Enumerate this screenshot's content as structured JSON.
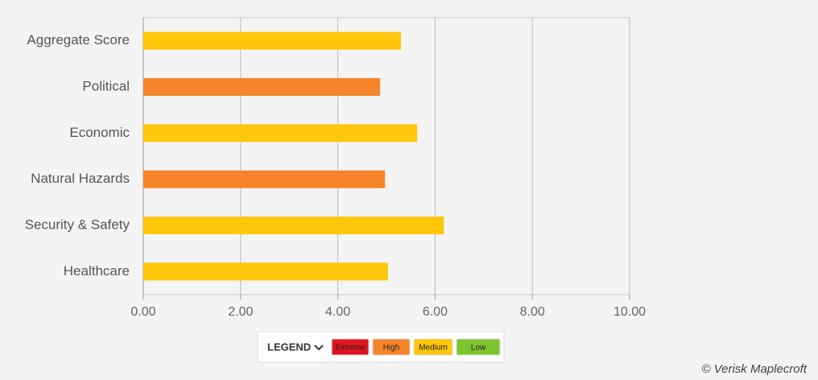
{
  "chart_data": {
    "type": "bar",
    "orientation": "horizontal",
    "categories": [
      "Aggregate Score",
      "Political",
      "Economic",
      "Natural Hazards",
      "Security & Safety",
      "Healthcare"
    ],
    "values": [
      5.3,
      4.87,
      5.63,
      4.97,
      6.18,
      5.03
    ],
    "colors": [
      "#ffc60a",
      "#f6842a",
      "#ffc60a",
      "#f6842a",
      "#ffc60a",
      "#ffc60a"
    ],
    "xlim": [
      0,
      10
    ],
    "xticks": [
      {
        "value": 0,
        "label": "0.00"
      },
      {
        "value": 2,
        "label": "2.00"
      },
      {
        "value": 4,
        "label": "4.00"
      },
      {
        "value": 6,
        "label": "6.00"
      },
      {
        "value": 8,
        "label": "8.00"
      },
      {
        "value": 10,
        "label": "10.00"
      }
    ],
    "grid": true,
    "legend": {
      "title": "LEGEND",
      "items": [
        {
          "name": "Extreme",
          "color": "#e0141e"
        },
        {
          "name": "High",
          "color": "#f6842a"
        },
        {
          "name": "Medium",
          "color": "#ffc60a"
        },
        {
          "name": "Low",
          "color": "#7dc52e"
        }
      ]
    },
    "credit": "© Verisk Maplecroft"
  }
}
